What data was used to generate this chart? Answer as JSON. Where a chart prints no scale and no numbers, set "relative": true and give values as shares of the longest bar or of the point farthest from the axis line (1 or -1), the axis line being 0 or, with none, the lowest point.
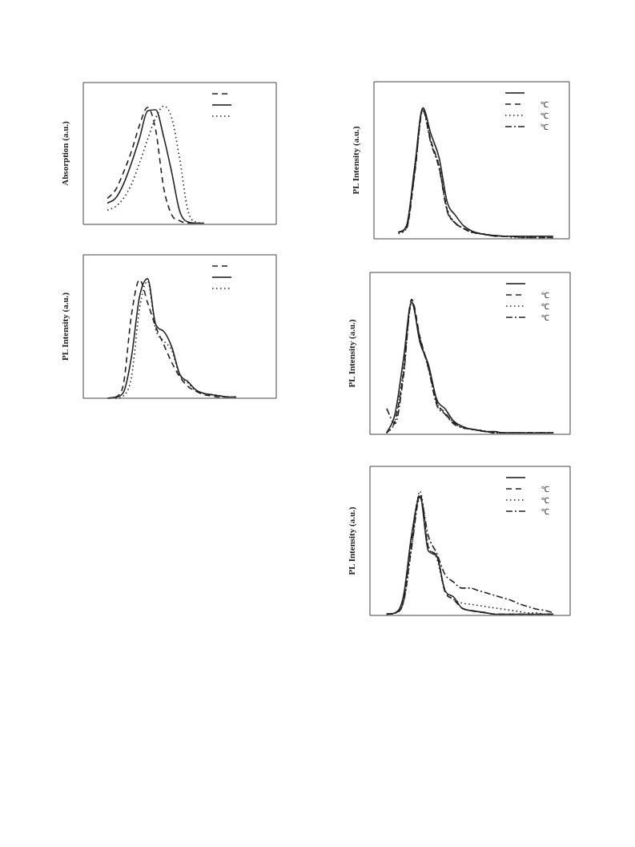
{
  "chart_data": [
    {
      "type": "line",
      "relative": true,
      "ylabel": "Absorption (a.u.)",
      "legend": "top right",
      "categories": [
        null,
        null,
        null,
        null,
        null,
        null,
        null,
        null,
        null,
        null,
        null,
        null,
        null,
        null,
        null,
        null,
        null,
        null,
        null,
        null,
        null,
        null,
        null,
        null,
        null
      ],
      "series": [
        {
          "color": "#222222",
          "line_style": "dashed",
          "values": [
            null,
            null,
            null,
            0.22,
            0.29,
            0.44,
            0.62,
            0.84,
            0.99,
            0.8,
            0.31,
            0.08,
            0.03,
            0.01,
            0.01,
            null,
            null,
            null,
            null,
            null,
            null,
            null,
            null,
            null,
            null
          ]
        },
        {
          "color": "#222222",
          "line_style": "solid",
          "values": [
            null,
            null,
            null,
            0.18,
            0.22,
            0.34,
            0.52,
            0.73,
            0.96,
            0.97,
            0.74,
            0.44,
            0.11,
            0.02,
            0.01,
            0.01,
            null,
            null,
            null,
            null,
            null,
            null,
            null,
            null,
            null
          ]
        },
        {
          "color": "#222222",
          "line_style": "dotted",
          "values": [
            null,
            null,
            null,
            0.12,
            0.15,
            0.22,
            0.34,
            0.52,
            0.72,
            0.9,
            1,
            0.9,
            0.55,
            0.12,
            0.02,
            0.01,
            null,
            null,
            null,
            null,
            null,
            null,
            null,
            null,
            null
          ]
        }
      ]
    },
    {
      "type": "line",
      "relative": true,
      "ylabel": "PL Intensity (a.u.)",
      "legend": "top right",
      "categories": [
        null,
        null,
        null,
        null,
        null,
        null,
        null,
        null,
        null,
        null,
        null,
        null,
        null,
        null,
        null,
        null,
        null,
        null,
        null,
        null,
        null,
        null,
        null,
        null,
        null
      ],
      "series": [
        {
          "color": "#222222",
          "line_style": "dashed",
          "values": [
            null,
            null,
            null,
            null,
            0,
            0.12,
            0.7,
            0.99,
            0.8,
            0.6,
            0.45,
            0.3,
            0.18,
            0.1,
            0.06,
            0.03,
            0.02,
            0.01,
            0.01,
            0.01,
            null,
            null,
            null,
            null,
            null
          ]
        },
        {
          "color": "#222222",
          "line_style": "solid",
          "values": [
            null,
            null,
            null,
            0,
            0.01,
            0.05,
            0.35,
            0.85,
            1,
            0.62,
            0.56,
            0.43,
            0.2,
            0.14,
            0.07,
            0.04,
            0.03,
            0.02,
            0.01,
            0.01,
            null,
            null,
            null,
            null,
            null
          ]
        },
        {
          "color": "#222222",
          "line_style": "dotted",
          "values": [
            null,
            null,
            null,
            null,
            0,
            0.02,
            0.18,
            0.75,
            0.98,
            0.58,
            0.48,
            0.4,
            0.19,
            0.13,
            0.06,
            0.04,
            0.03,
            0.02,
            0.01,
            0.01,
            null,
            null,
            null,
            null,
            null
          ]
        }
      ]
    },
    {
      "type": "line",
      "relative": true,
      "ylabel": "PL Intensity (a.u.)",
      "legend": "top right",
      "categories": [
        null,
        null,
        null,
        null,
        null,
        null,
        null,
        null,
        null,
        null,
        null,
        null,
        null,
        null,
        null,
        null,
        null,
        null,
        null,
        null,
        null,
        null,
        null,
        null,
        null
      ],
      "series": [
        {
          "color": "#222222",
          "line_style": "solid",
          "values": [
            null,
            null,
            null,
            0.05,
            0.1,
            0.55,
            1,
            0.8,
            0.62,
            0.28,
            0.18,
            0.1,
            0.06,
            0.04,
            0.03,
            0.025,
            0.02,
            0.02,
            0.02,
            0.02,
            0.02,
            0.02,
            0.02,
            null,
            null
          ]
        },
        {
          "name": "℃",
          "color": "#222222",
          "line_style": "dashed",
          "values": [
            null,
            null,
            null,
            0.05,
            0.08,
            0.5,
            0.99,
            0.75,
            0.55,
            0.22,
            0.12,
            0.08,
            0.05,
            0.04,
            0.03,
            0.02,
            0.02,
            0.02,
            0.01,
            0.01,
            0.01,
            0.01,
            0.01,
            null,
            null
          ]
        },
        {
          "name": "℃",
          "color": "#222222",
          "line_style": "dotted",
          "values": [
            null,
            null,
            null,
            0.04,
            0.08,
            0.52,
            0.99,
            0.74,
            0.56,
            0.23,
            0.12,
            0.08,
            0.05,
            0.04,
            0.03,
            0.02,
            0.02,
            0.01,
            0.01,
            0.01,
            0.01,
            0.01,
            0.01,
            null,
            null
          ]
        },
        {
          "name": "℃",
          "color": "#222222",
          "line_style": "dashdot",
          "values": [
            null,
            null,
            null,
            0.05,
            0.09,
            0.5,
            0.98,
            0.73,
            0.54,
            0.21,
            0.12,
            0.08,
            0.05,
            0.04,
            0.03,
            0.02,
            0.02,
            0.02,
            0.01,
            0.01,
            0.01,
            0.01,
            0.01,
            null,
            null
          ]
        }
      ]
    },
    {
      "type": "line",
      "relative": true,
      "ylabel": "PL Intensity (a.u.)",
      "legend": "top right",
      "categories": [
        null,
        null,
        null,
        null,
        null,
        null,
        null,
        null,
        null,
        null,
        null,
        null,
        null,
        null,
        null,
        null,
        null,
        null,
        null,
        null,
        null,
        null,
        null,
        null,
        null
      ],
      "series": [
        {
          "color": "#222222",
          "line_style": "solid",
          "values": [
            null,
            null,
            0.01,
            0.15,
            0.55,
            0.98,
            0.68,
            0.52,
            0.26,
            0.19,
            0.1,
            0.06,
            0.04,
            0.03,
            0.02,
            0.02,
            0.01,
            0.01,
            0.01,
            0.01,
            0.01,
            0.01,
            0.01,
            null,
            null
          ]
        },
        {
          "name": "℃",
          "color": "#222222",
          "line_style": "dashed",
          "values": [
            null,
            null,
            0.01,
            0.1,
            0.45,
            1,
            0.72,
            0.5,
            0.24,
            0.16,
            0.09,
            0.06,
            0.04,
            0.03,
            0.02,
            0.01,
            0.01,
            0.01,
            0.01,
            0.01,
            0.01,
            0.01,
            0.01,
            null,
            null
          ]
        },
        {
          "name": "℃",
          "color": "#222222",
          "line_style": "dotted",
          "values": [
            null,
            null,
            0.01,
            0.1,
            0.47,
            0.99,
            0.7,
            0.5,
            0.24,
            0.15,
            0.09,
            0.05,
            0.04,
            0.03,
            0.02,
            0.01,
            0.01,
            0.01,
            0.01,
            0.01,
            0.01,
            0.01,
            0.01,
            null,
            null
          ]
        },
        {
          "name": "℃",
          "color": "#222222",
          "line_style": "dashdot",
          "values": [
            null,
            null,
            0.19,
            0.08,
            0.42,
            0.98,
            0.71,
            0.49,
            0.22,
            0.15,
            0.08,
            0.05,
            0.04,
            0.03,
            0.02,
            0.01,
            0.01,
            0.01,
            0.01,
            0.01,
            0.01,
            0.01,
            0.01,
            null,
            null
          ]
        }
      ]
    },
    {
      "type": "line",
      "relative": true,
      "ylabel": "PL Intensity (a.u.)",
      "legend": "top right",
      "categories": [
        null,
        null,
        null,
        null,
        null,
        null,
        null,
        null,
        null,
        null,
        null,
        null,
        null,
        null,
        null,
        null,
        null,
        null,
        null,
        null,
        null,
        null,
        null,
        null,
        null
      ],
      "series": [
        {
          "color": "#222222",
          "line_style": "solid",
          "values": [
            null,
            null,
            0.01,
            0.02,
            0.15,
            0.65,
            0.96,
            0.52,
            0.48,
            0.2,
            0.15,
            0.06,
            0.04,
            0.03,
            0.02,
            0.01,
            0.01,
            0.01,
            0.01,
            0.01,
            0.01,
            0.01,
            0.01,
            null,
            null
          ]
        },
        {
          "name": "℃",
          "color": "#222222",
          "line_style": "dashed",
          "values": [
            null,
            null,
            0.01,
            0.02,
            0.12,
            0.6,
            0.98,
            0.55,
            0.48,
            0.19,
            0.13,
            0.06,
            0.04,
            0.03,
            0.02,
            0.01,
            0.01,
            0.01,
            0.01,
            0.01,
            0.01,
            0.01,
            0.01,
            null,
            null
          ]
        },
        {
          "name": "℃",
          "color": "#222222",
          "line_style": "dotted",
          "values": [
            null,
            null,
            0.01,
            0.02,
            0.1,
            0.55,
            1,
            0.56,
            0.46,
            0.2,
            0.13,
            0.1,
            0.09,
            0.08,
            0.07,
            0.06,
            0.05,
            0.04,
            0.03,
            0.02,
            0.02,
            0.01,
            0.01,
            null,
            null
          ]
        },
        {
          "name": "℃",
          "color": "#222222",
          "line_style": "dashdot",
          "values": [
            null,
            null,
            0.01,
            0.02,
            0.1,
            0.55,
            0.95,
            0.64,
            0.5,
            0.33,
            0.27,
            0.22,
            0.22,
            0.2,
            0.18,
            0.16,
            0.14,
            0.12,
            0.09,
            0.07,
            0.05,
            0.04,
            0.02,
            null,
            null
          ]
        }
      ]
    }
  ]
}
